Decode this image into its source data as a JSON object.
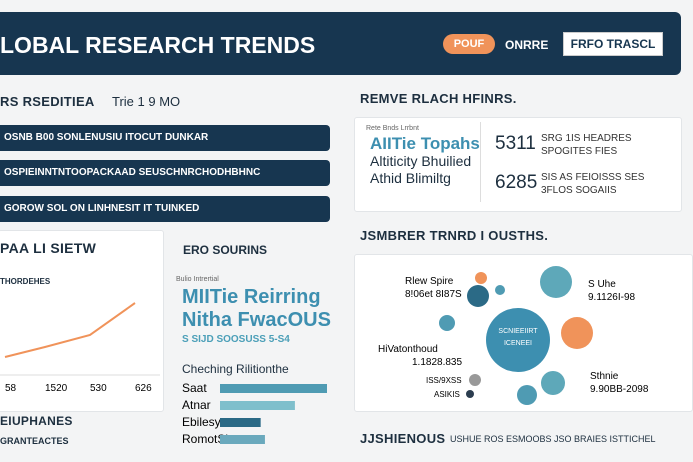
{
  "header": {
    "title": "LOBAL RESEARCH TRENDS",
    "button_primary": "POUF",
    "link": "ONRRE",
    "button_secondary": "FRFO TRASCL"
  },
  "left": {
    "heading": "RS RSEDITIEA",
    "heading_note": "Trie 1 9 MO",
    "rows": [
      "OSNB B00 SONLENUSIU ITOCUT DUNKAR",
      "OSPIEINNTNTOOPACKAAD SEUSCHNRCHODHBHNC",
      "GOROW SOL ON LINHNESIT IT TUINKED"
    ],
    "trend_title": "PAA LI SIETW",
    "trend_subtitle": "THORDEHES",
    "footer_title": "EIUPHANES",
    "footer_sub": "GRANTEACTES"
  },
  "trend_chart": {
    "type": "line",
    "categories": [
      "58",
      "1520",
      "530",
      "626"
    ],
    "values": [
      8,
      18,
      30,
      62
    ],
    "ylim": [
      0,
      100
    ],
    "color": "#f0935a"
  },
  "center": {
    "heading": "ERO SOURINS",
    "card_label": "Bulio Intrertial",
    "big1": "MIITie Reirring",
    "big2": "Nitha FwacOUS",
    "small": "S SIJD SOOSUSS 5-S4",
    "list_title": "Cheching Rilitionthe",
    "bars": {
      "labels": [
        "Saat",
        "Atnar",
        "Ebilesy",
        "RomotSire"
      ],
      "values": [
        100,
        70,
        38,
        42
      ],
      "xlim": [
        0,
        100
      ],
      "colors": [
        "#4f9bb3",
        "#7fbfcc",
        "#2b6a86",
        "#6aa9bd"
      ]
    }
  },
  "right": {
    "heading": "REMVE RLACH HFINRS.",
    "card_label": "Rete Bnds Lrrbnt",
    "title": "AIITie Topahs",
    "line1": "Altiticity Bhuilied",
    "line2": "Athid Blimiltg",
    "stats": [
      {
        "value": "5311",
        "l1": "SRG 1IS HEADRES",
        "l2": "SPOGITES FIES"
      },
      {
        "value": "6285",
        "l1": "SIS AS FEIOISSS SES",
        "l2": "3FLOS SOGAIIS"
      }
    ],
    "bubble_heading": "JSMBRER TRNRD I OUSTHS.",
    "bubble_labels": [
      "Rlew Spire",
      "8!06et 8I87S",
      "S Uhe",
      "9.1126I-98",
      "HiVatonthoud",
      "1.1828.835",
      "Sthnie",
      "9.90BB-2098",
      "ISS/9XSS",
      "ASIKIS"
    ],
    "bubble_center": [
      "SCNIEEIIRT",
      "ICENEEI"
    ],
    "footer_title": "JJSHIENOUS",
    "footer_sub": "USHUE ROS ESMOOBS JSO BRAIES ISTTICHEL"
  }
}
